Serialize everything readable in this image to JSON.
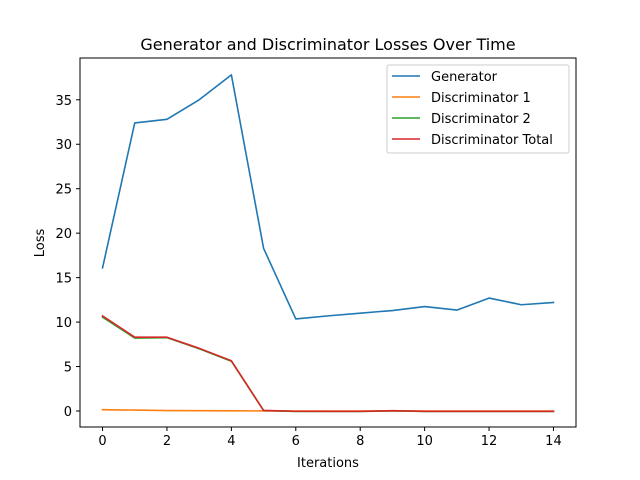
{
  "chart_data": {
    "type": "line",
    "title": "Generator and Discriminator Losses Over Time",
    "xlabel": "Iterations",
    "ylabel": "Loss",
    "xlim": [
      -0.7,
      14.7
    ],
    "ylim": [
      -1.8,
      39.7
    ],
    "xticks": [
      0,
      2,
      4,
      6,
      8,
      10,
      12,
      14
    ],
    "yticks": [
      0,
      5,
      10,
      15,
      20,
      25,
      30,
      35
    ],
    "grid": false,
    "legend_position": "top-right",
    "x": [
      0,
      1,
      2,
      3,
      4,
      5,
      6,
      7,
      8,
      9,
      10,
      11,
      12,
      13,
      14
    ],
    "series": [
      {
        "name": "Generator",
        "color": "#1f77b4",
        "values": [
          16.1,
          32.4,
          32.8,
          35.0,
          37.8,
          18.3,
          10.35,
          10.7,
          11.0,
          11.3,
          11.75,
          11.35,
          12.7,
          11.95,
          12.2
        ]
      },
      {
        "name": "Discriminator 1",
        "color": "#ff7f0e",
        "values": [
          0.15,
          0.1,
          0.05,
          0.03,
          0.02,
          0.01,
          0.0,
          0.0,
          0.0,
          0.0,
          0.0,
          0.0,
          0.0,
          0.0,
          0.0
        ]
      },
      {
        "name": "Discriminator 2",
        "color": "#2ca02c",
        "values": [
          10.55,
          8.2,
          8.25,
          7.0,
          5.6,
          0.05,
          -0.05,
          -0.05,
          -0.05,
          0.02,
          -0.05,
          -0.05,
          -0.05,
          -0.05,
          -0.05
        ]
      },
      {
        "name": "Discriminator Total",
        "color": "#d62728",
        "values": [
          10.7,
          8.3,
          8.3,
          7.05,
          5.65,
          0.06,
          -0.03,
          -0.04,
          -0.04,
          0.03,
          -0.04,
          -0.04,
          -0.04,
          -0.04,
          -0.04
        ]
      }
    ]
  }
}
